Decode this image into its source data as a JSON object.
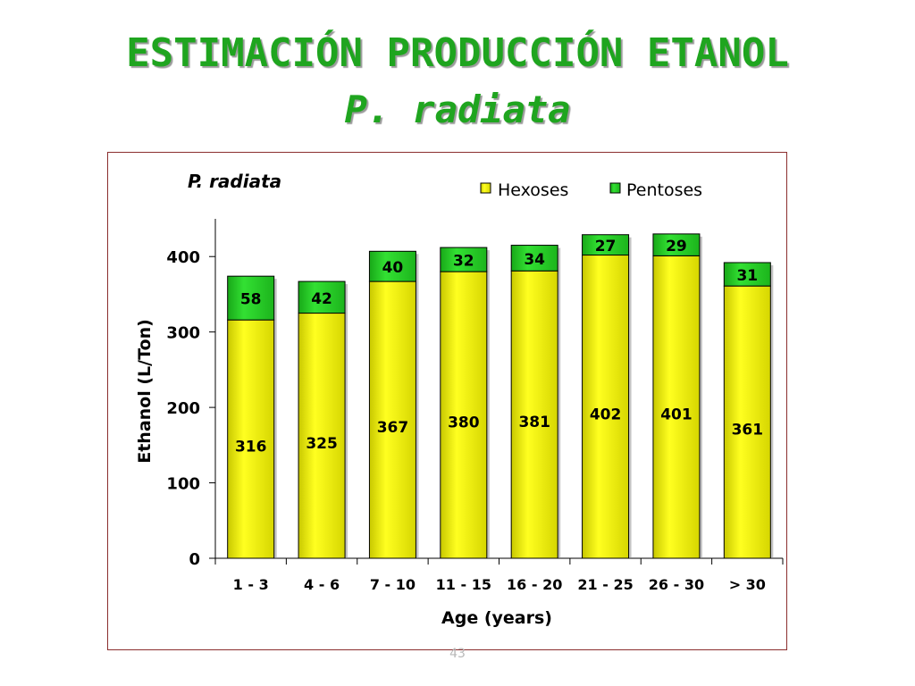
{
  "slide": {
    "title": "ESTIMACIÓN PRODUCCIÓN ETANOL",
    "subtitle": "P. radiata",
    "page_number": "43"
  },
  "chart_data": {
    "type": "bar",
    "stacked": true,
    "title": "P. radiata",
    "xlabel": "Age (years)",
    "ylabel": "Ethanol (L/Ton)",
    "categories": [
      "1 - 3",
      "4 - 6",
      "7 - 10",
      "11 - 15",
      "16 - 20",
      "21 - 25",
      "26 - 30",
      "> 30"
    ],
    "series": [
      {
        "name": "Hexoses",
        "values": [
          316,
          325,
          367,
          380,
          381,
          402,
          401,
          361
        ],
        "color": "#f0f000"
      },
      {
        "name": "Pentoses",
        "values": [
          58,
          42,
          40,
          32,
          34,
          27,
          29,
          31
        ],
        "color": "#22cc22"
      }
    ],
    "ylim": [
      0,
      450
    ],
    "yticks": [
      0,
      100,
      200,
      300,
      400
    ],
    "legend": "top-right",
    "grid": false
  }
}
